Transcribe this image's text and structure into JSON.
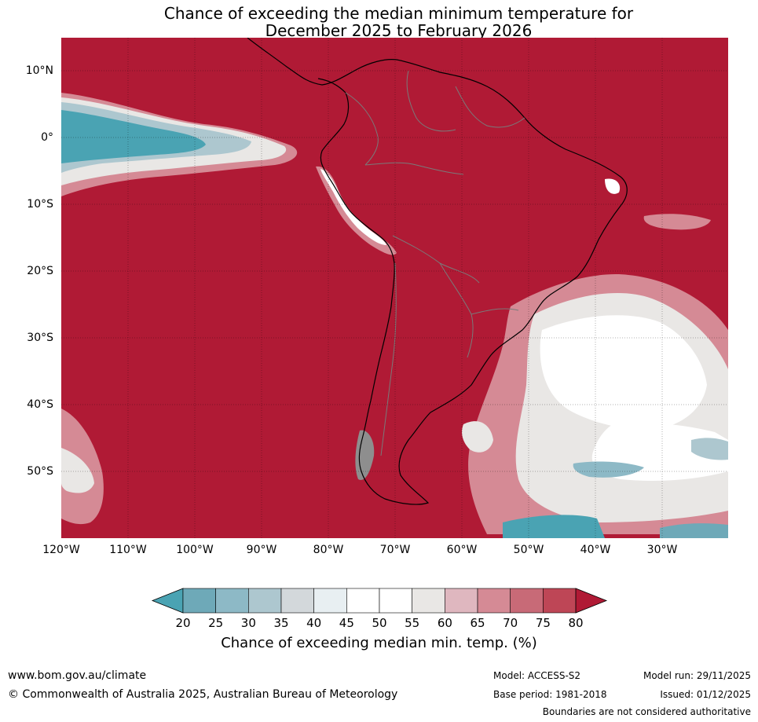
{
  "title": {
    "line1": "Chance of exceeding the median minimum temperature for",
    "line2": "December 2025 to February 2026"
  },
  "map": {
    "region": "South America and surrounding oceans",
    "lat_labels": [
      "10°N",
      "0°",
      "10°S",
      "20°S",
      "30°S",
      "40°S",
      "50°S"
    ],
    "lon_labels": [
      "120°W",
      "110°W",
      "100°W",
      "90°W",
      "80°W",
      "70°W",
      "60°W",
      "50°W",
      "40°W",
      "30°W"
    ],
    "dominant_category": "80",
    "lat_range": [
      -60,
      15
    ],
    "lon_range": [
      -120,
      -20
    ]
  },
  "colorbar": {
    "ticks": [
      "20",
      "25",
      "30",
      "35",
      "40",
      "45",
      "50",
      "55",
      "60",
      "65",
      "70",
      "75",
      "80"
    ],
    "colors": [
      "#4aa3b3",
      "#6ea9b8",
      "#8db9c6",
      "#adc7cf",
      "#d3d8db",
      "#e8eff2",
      "#ffffff",
      "#ffffff",
      "#e9e7e5",
      "#dfb7bf",
      "#d58a95",
      "#c86a77",
      "#be4656",
      "#b01a35"
    ],
    "label": "Chance of exceeding median min. temp. (%)"
  },
  "footer": {
    "website": "www.bom.gov.au/climate",
    "copyright": "© Commonwealth of Australia 2025, Australian Bureau of Meteorology",
    "model": "Model: ACCESS-S2",
    "base_period": "Base period: 1981-2018",
    "model_run": "Model run: 29/11/2025",
    "issued": "Issued: 01/12/2025",
    "boundaries": "Boundaries are not considered authoritative"
  }
}
